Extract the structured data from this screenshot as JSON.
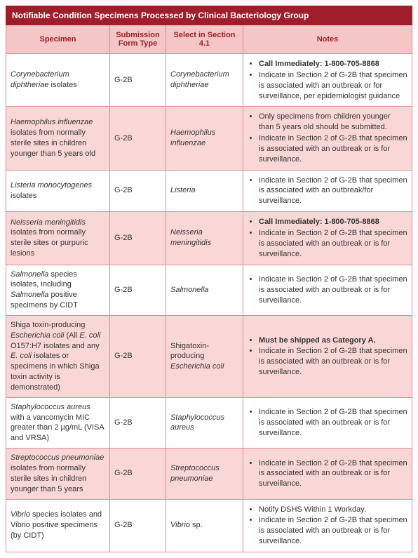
{
  "title": "Notifiable Condition Specimens Processed by Clinical Bacteriology Group",
  "columns": [
    "Specimen",
    "Submission Form Type",
    "Select in Section 4.1",
    "Notes"
  ],
  "rows": [
    {
      "specimen_html": "<em>Corynebacterium diphtheriae</em> isolates",
      "form": "G-2B",
      "select_html": "<em>Corynebacterium diphtheriae</em>",
      "notes": [
        {
          "text": "Call Immediately: 1-800-705-8868",
          "bold": true
        },
        {
          "text": "Indicate in Section 2 of G-2B that specimen is associated with an outbreak or for surveillance, per epidemiologist guidance"
        }
      ]
    },
    {
      "specimen_html": "<em>Haemophilus influenzae</em> isolates from normally sterile sites in children younger than 5 years old",
      "form": "G-2B",
      "select_html": "<em>Haemophilus influenzae</em>",
      "notes": [
        {
          "text": "Only specimens from children younger than 5 years old should be submitted."
        },
        {
          "text": "Indicate in Section 2 of G-2B that specimen is associated with an outbreak or is for surveillance."
        }
      ]
    },
    {
      "specimen_html": "<em>Listeria monocytogenes</em> isolates",
      "form": "G-2B",
      "select_html": "<em>Listeria</em>",
      "notes": [
        {
          "text": "Indicate in Section 2 of G-2B that specimen is associated with an outbreak/for surveillance."
        }
      ]
    },
    {
      "specimen_html": "<em>Neisseria meningitidis</em> isolates from normally sterile sites or purpuric lesions",
      "form": "G-2B",
      "select_html": "<em>Neisseria meningitidis</em>",
      "notes": [
        {
          "text": "Call Immediately: 1-800-705-8868",
          "bold": true
        },
        {
          "text": "Indicate in Section 2 of G-2B that specimen is associated with an outbreak or is for surveillance."
        }
      ]
    },
    {
      "specimen_html": "<em>Salmonella</em> species isolates, including <em>Salmonella</em> positive specimens by CIDT",
      "form": "G-2B",
      "select_html": "<em>Salmonella</em>",
      "notes": [
        {
          "text": "Indicate in Section 2 of G-2B that specimen is associated with an outbreak or is for surveillance."
        }
      ]
    },
    {
      "specimen_html": "Shiga toxin-producing <em>Escherichia coli</em> (All <em>E. coli</em> O157:H7 isolates and any <em>E. coli</em> isolates or specimens in which Shiga toxin activity is demonstrated)",
      "form": "G-2B",
      "select_html": "Shigatoxin-producing <em>Escherichia coli</em>",
      "notes": [
        {
          "text": "Must be shipped as Category A.",
          "bold": true
        },
        {
          "text": "Indicate in Section 2 of G-2B that specimen is associated with an outbreak or is for surveillance."
        }
      ]
    },
    {
      "specimen_html": "<em>Staphylococcus aureus</em> with a vancomycin MIC greater than 2 µg/mL (VISA and VRSA)",
      "form": "G-2B",
      "select_html": "<em>Staphylococcus aureus</em>",
      "notes": [
        {
          "text": "Indicate in Section 2 of G-2B that specimen is associated with an outbreak or is for surveillance."
        }
      ]
    },
    {
      "specimen_html": "<em>Streptococcus pneumoniae</em> isolates from normally sterile sites in children younger than 5 years",
      "form": "G-2B",
      "select_html": "<em>Streptococcus pneumoniae</em>",
      "notes": [
        {
          "text": "Indicate in Section 2 of G-2B that specimen is associated with an outbreak or is for surveillance."
        }
      ]
    },
    {
      "specimen_html": "<em>Vibrio</em> species isolates and Vibrio positive specimens (by CIDT)",
      "form": "G-2B",
      "select_html": "<em>Vibrio</em> sp.",
      "notes": [
        {
          "text": "Notify DSHS Within 1 Workday."
        },
        {
          "text": "Indicate in Section 2 of G-2B that specimen is associated with an outbreak or is for surveillance."
        }
      ]
    }
  ]
}
